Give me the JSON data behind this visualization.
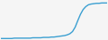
{
  "line_color": "#3a9fd1",
  "line_width": 1.0,
  "background_color": "#f5f5f5",
  "x_values": [
    0,
    1,
    2,
    3,
    4,
    5,
    6,
    7,
    8,
    9,
    10,
    11,
    12,
    13,
    14,
    15,
    16,
    17,
    18,
    19,
    20,
    21,
    22,
    23,
    24,
    25,
    26,
    27,
    28,
    29,
    30,
    31,
    32,
    33,
    34,
    35,
    36,
    37,
    38,
    39,
    40
  ],
  "y_values": [
    0.01,
    0.01,
    0.01,
    0.01,
    0.01,
    0.02,
    0.02,
    0.02,
    0.02,
    0.02,
    0.02,
    0.02,
    0.03,
    0.03,
    0.03,
    0.03,
    0.04,
    0.04,
    0.04,
    0.05,
    0.05,
    0.06,
    0.07,
    0.08,
    0.09,
    0.11,
    0.14,
    0.2,
    0.32,
    0.5,
    0.67,
    0.8,
    0.88,
    0.93,
    0.95,
    0.96,
    0.97,
    0.97,
    0.98,
    0.98,
    0.98
  ],
  "ylim": [
    -0.02,
    1.05
  ],
  "xlim": [
    0,
    40
  ]
}
